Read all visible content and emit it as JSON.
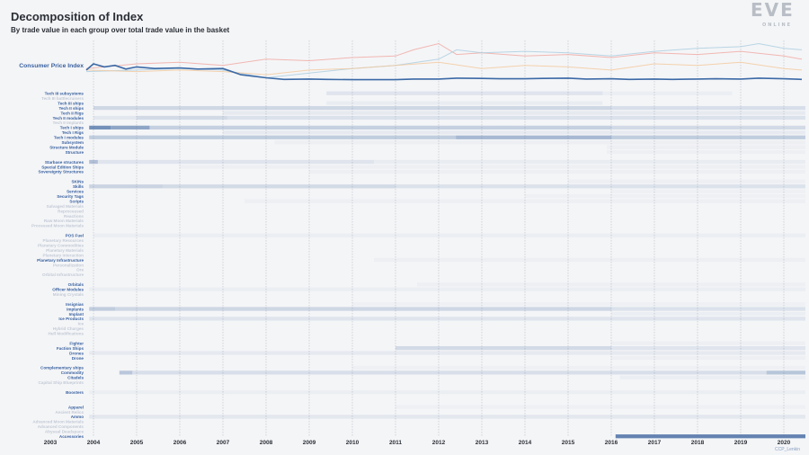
{
  "title": "Decomposition of Index",
  "subtitle": "By trade value in each group over total trade value in the basket",
  "logo": {
    "brand": "EVE",
    "sub": "ONLINE"
  },
  "credit": "CCP_Lenkin",
  "colors": {
    "cpi_line": "#3b69a6",
    "label_strong": "#3a62a0",
    "label_faint": "#c3cad6",
    "heat": "#4a6fa5",
    "background": "#f4f5f7",
    "gridline": "#b7bcc4",
    "bg_line_red": "#f0a8a0",
    "bg_line_blue": "#a9cde0",
    "bg_line_orange": "#f3c89a"
  },
  "chart_data": {
    "type": "heatmap",
    "title": "Decomposition of Index",
    "subtitle": "By trade value in each group over total trade value in the basket",
    "x_axis": {
      "type": "date",
      "range": [
        "2003-01-01",
        "2020-06-01"
      ],
      "ticks": [
        "2003",
        "2004",
        "2005",
        "2006",
        "2007",
        "2008",
        "2009",
        "2010",
        "2011",
        "2012",
        "2013",
        "2014",
        "2015",
        "2016",
        "2017",
        "2018",
        "2019",
        "2020"
      ],
      "grid": true
    },
    "top_series": {
      "name": "Consumer Price Index",
      "x": [
        "2003-11",
        "2004-01",
        "2004-04",
        "2004-07",
        "2004-10",
        "2005-01",
        "2005-06",
        "2006-01",
        "2006-06",
        "2007-01",
        "2007-06",
        "2008-01",
        "2008-06",
        "2009-01",
        "2009-06",
        "2010-01",
        "2010-06",
        "2011-01",
        "2011-06",
        "2012-01",
        "2012-06",
        "2013-01",
        "2013-06",
        "2014-01",
        "2014-06",
        "2015-01",
        "2015-06",
        "2016-01",
        "2016-06",
        "2017-01",
        "2017-06",
        "2018-01",
        "2018-06",
        "2019-01",
        "2019-06",
        "2020-01",
        "2020-06"
      ],
      "values": [
        0.85,
        1.05,
        0.95,
        1.0,
        0.88,
        0.95,
        0.9,
        0.92,
        0.88,
        0.9,
        0.7,
        0.6,
        0.55,
        0.56,
        0.55,
        0.54,
        0.54,
        0.54,
        0.56,
        0.56,
        0.59,
        0.58,
        0.57,
        0.57,
        0.58,
        0.59,
        0.56,
        0.57,
        0.55,
        0.56,
        0.55,
        0.56,
        0.57,
        0.56,
        0.59,
        0.57,
        0.55
      ]
    },
    "background_series": [
      {
        "color": "red",
        "x": [
          "2003-11",
          "2005-01",
          "2006-01",
          "2007-01",
          "2008-01",
          "2009-01",
          "2010-01",
          "2011-01",
          "2011-06",
          "2012-01",
          "2012-06",
          "2013-01",
          "2014-01",
          "2015-01",
          "2016-01",
          "2017-01",
          "2018-01",
          "2019-01",
          "2020-01",
          "2020-06"
        ],
        "values": [
          0.9,
          1.05,
          1.1,
          1.0,
          1.2,
          1.15,
          1.25,
          1.3,
          1.5,
          1.7,
          1.35,
          1.4,
          1.3,
          1.35,
          1.25,
          1.4,
          1.35,
          1.45,
          1.3,
          1.2
        ]
      },
      {
        "color": "blue",
        "x": [
          "2003-11",
          "2005-01",
          "2006-01",
          "2007-01",
          "2008-01",
          "2009-01",
          "2010-01",
          "2011-01",
          "2012-01",
          "2012-06",
          "2013-01",
          "2014-01",
          "2015-01",
          "2016-01",
          "2017-01",
          "2018-01",
          "2019-01",
          "2019-06",
          "2020-01",
          "2020-06"
        ],
        "values": [
          0.8,
          0.85,
          0.9,
          0.85,
          0.6,
          0.75,
          0.9,
          1.0,
          1.2,
          1.5,
          1.4,
          1.45,
          1.4,
          1.3,
          1.45,
          1.55,
          1.6,
          1.7,
          1.55,
          1.5
        ]
      },
      {
        "color": "orange",
        "x": [
          "2003-11",
          "2005-01",
          "2006-01",
          "2007-01",
          "2008-01",
          "2009-01",
          "2010-01",
          "2011-01",
          "2012-01",
          "2013-01",
          "2014-01",
          "2015-01",
          "2016-01",
          "2017-01",
          "2018-01",
          "2019-01",
          "2020-01",
          "2020-06"
        ],
        "values": [
          0.85,
          0.8,
          0.85,
          0.8,
          0.7,
          0.85,
          0.9,
          1.0,
          1.1,
          0.9,
          1.0,
          0.95,
          0.85,
          1.05,
          1.0,
          1.1,
          0.9,
          0.85
        ]
      }
    ],
    "categories": [
      {
        "name": "Tech III subsystems",
        "strong": true,
        "bands": [
          [
            2009.4,
            2015.8,
            0.12
          ],
          [
            2015.8,
            2018.8,
            0.05
          ]
        ]
      },
      {
        "name": "Tech III battlecruisers",
        "strong": false,
        "bands": []
      },
      {
        "name": "Tech III ships",
        "strong": true,
        "bands": [
          [
            2009.4,
            2015.8,
            0.06
          ]
        ]
      },
      {
        "name": "Tech II ships",
        "strong": true,
        "bands": [
          [
            2004.0,
            2016.0,
            0.22
          ],
          [
            2016.0,
            2020.5,
            0.16
          ]
        ]
      },
      {
        "name": "Tech II Rigs",
        "strong": true,
        "bands": [
          [
            2007.0,
            2020.5,
            0.08
          ]
        ]
      },
      {
        "name": "Tech II modules",
        "strong": true,
        "bands": [
          [
            2004.0,
            2005.0,
            0.1
          ],
          [
            2005.0,
            2007.1,
            0.2
          ],
          [
            2007.1,
            2020.5,
            0.14
          ]
        ]
      },
      {
        "name": "Tech II Implants",
        "strong": false,
        "bands": []
      },
      {
        "name": "Tech I ships",
        "strong": true,
        "bands": [
          [
            2003.9,
            2004.4,
            0.75
          ],
          [
            2004.4,
            2005.3,
            0.6
          ],
          [
            2005.3,
            2016.0,
            0.28
          ],
          [
            2016.0,
            2020.5,
            0.2
          ]
        ]
      },
      {
        "name": "Tech I Rigs",
        "strong": true,
        "bands": [
          [
            2007.0,
            2020.5,
            0.07
          ]
        ]
      },
      {
        "name": "Tech I modules",
        "strong": true,
        "bands": [
          [
            2003.9,
            2012.4,
            0.3
          ],
          [
            2012.4,
            2016.0,
            0.45
          ],
          [
            2016.0,
            2020.5,
            0.3
          ]
        ]
      },
      {
        "name": "Subsystem",
        "strong": true,
        "bands": [
          [
            2008.2,
            2020.5,
            0.04
          ]
        ]
      },
      {
        "name": "Structure Module",
        "strong": true,
        "bands": [
          [
            2015.9,
            2020.5,
            0.04
          ]
        ]
      },
      {
        "name": "Structure",
        "strong": true,
        "bands": [
          [
            2015.9,
            2020.5,
            0.04
          ]
        ]
      },
      {
        "name": "_gap1",
        "strong": false,
        "bands": [],
        "gap": true
      },
      {
        "name": "Starbase structures",
        "strong": true,
        "bands": [
          [
            2003.9,
            2004.1,
            0.4
          ],
          [
            2004.1,
            2010.5,
            0.12
          ],
          [
            2010.5,
            2020.5,
            0.06
          ]
        ]
      },
      {
        "name": "Special Edition Ships",
        "strong": true,
        "bands": [
          [
            2006.0,
            2020.5,
            0.04
          ]
        ]
      },
      {
        "name": "Sovereignty Structures",
        "strong": true,
        "bands": [
          [
            2009.0,
            2020.5,
            0.04
          ]
        ]
      },
      {
        "name": "_gap2",
        "strong": false,
        "bands": [],
        "gap": true
      },
      {
        "name": "SKINs",
        "strong": true,
        "bands": [
          [
            2015.0,
            2020.5,
            0.04
          ]
        ]
      },
      {
        "name": "Skills",
        "strong": true,
        "bands": [
          [
            2003.9,
            2005.6,
            0.25
          ],
          [
            2005.6,
            2011.0,
            0.2
          ],
          [
            2011.0,
            2020.5,
            0.14
          ]
        ]
      },
      {
        "name": "Services",
        "strong": true,
        "bands": [
          [
            2016.0,
            2020.5,
            0.03
          ]
        ]
      },
      {
        "name": "Security Tags",
        "strong": true,
        "bands": [
          [
            2014.0,
            2020.5,
            0.03
          ]
        ]
      },
      {
        "name": "Scripts",
        "strong": true,
        "bands": [
          [
            2007.5,
            2020.5,
            0.04
          ]
        ]
      },
      {
        "name": "Salvaged Materials",
        "strong": false,
        "bands": []
      },
      {
        "name": "Reprocessed",
        "strong": false,
        "bands": []
      },
      {
        "name": "Reactions",
        "strong": false,
        "bands": []
      },
      {
        "name": "Raw Moon Materials",
        "strong": false,
        "bands": []
      },
      {
        "name": "Processed Moon Materials",
        "strong": false,
        "bands": []
      },
      {
        "name": "_gap3",
        "strong": false,
        "bands": [],
        "gap": true
      },
      {
        "name": "POS Fuel",
        "strong": true,
        "bands": [
          [
            2004.0,
            2020.5,
            0.05
          ]
        ]
      },
      {
        "name": "Planetary Resources",
        "strong": false,
        "bands": []
      },
      {
        "name": "Planetary Commodities",
        "strong": false,
        "bands": []
      },
      {
        "name": "Planetary Materials",
        "strong": false,
        "bands": []
      },
      {
        "name": "Planetary Interaction",
        "strong": false,
        "bands": []
      },
      {
        "name": "Planetary Infrastructure",
        "strong": true,
        "bands": [
          [
            2010.5,
            2020.5,
            0.04
          ]
        ]
      },
      {
        "name": "Personalization",
        "strong": false,
        "bands": []
      },
      {
        "name": "Ore",
        "strong": false,
        "bands": []
      },
      {
        "name": "Orbital Infrastructure",
        "strong": false,
        "bands": []
      },
      {
        "name": "_gap4",
        "strong": false,
        "bands": [],
        "gap": true
      },
      {
        "name": "Orbitals",
        "strong": true,
        "bands": [
          [
            2011.5,
            2020.5,
            0.04
          ]
        ]
      },
      {
        "name": "Officer Modules",
        "strong": true,
        "bands": [
          [
            2003.9,
            2020.5,
            0.05
          ]
        ]
      },
      {
        "name": "Mining Crystals",
        "strong": false,
        "bands": []
      },
      {
        "name": "_gap5",
        "strong": false,
        "bands": [],
        "gap": true
      },
      {
        "name": "Insignias",
        "strong": true,
        "bands": [
          [
            2010.0,
            2020.5,
            0.03
          ]
        ]
      },
      {
        "name": "Implants",
        "strong": true,
        "bands": [
          [
            2003.9,
            2004.5,
            0.3
          ],
          [
            2004.5,
            2016.0,
            0.22
          ],
          [
            2016.0,
            2020.5,
            0.14
          ]
        ]
      },
      {
        "name": "Implant",
        "strong": true,
        "bands": [
          [
            2016.0,
            2020.5,
            0.05
          ]
        ]
      },
      {
        "name": "Ice Products",
        "strong": true,
        "bands": [
          [
            2003.9,
            2020.5,
            0.12
          ]
        ]
      },
      {
        "name": "Ice",
        "strong": false,
        "bands": []
      },
      {
        "name": "Hybrid Charges",
        "strong": false,
        "bands": []
      },
      {
        "name": "Hull Modifications",
        "strong": false,
        "bands": []
      },
      {
        "name": "_gap6",
        "strong": false,
        "bands": [],
        "gap": true
      },
      {
        "name": "Fighter",
        "strong": true,
        "bands": [
          [
            2016.0,
            2020.5,
            0.04
          ]
        ]
      },
      {
        "name": "Faction Ships",
        "strong": true,
        "bands": [
          [
            2011.0,
            2016.0,
            0.2
          ],
          [
            2016.0,
            2020.5,
            0.12
          ]
        ]
      },
      {
        "name": "Drones",
        "strong": true,
        "bands": [
          [
            2003.9,
            2020.5,
            0.08
          ]
        ]
      },
      {
        "name": "Drone",
        "strong": true,
        "bands": [
          [
            2016.0,
            2020.5,
            0.04
          ]
        ]
      },
      {
        "name": "_gap7",
        "strong": false,
        "bands": [],
        "gap": true
      },
      {
        "name": "Complementary ships",
        "strong": true,
        "bands": [
          [
            2010.0,
            2020.5,
            0.03
          ]
        ]
      },
      {
        "name": "Commodity",
        "strong": true,
        "bands": [
          [
            2004.6,
            2004.9,
            0.35
          ],
          [
            2004.9,
            2020.5,
            0.16
          ],
          [
            2019.6,
            2020.5,
            0.22
          ]
        ]
      },
      {
        "name": "Citadels",
        "strong": true,
        "bands": [
          [
            2016.2,
            2020.5,
            0.05
          ]
        ]
      },
      {
        "name": "Capital Ship Blueprints",
        "strong": false,
        "bands": []
      },
      {
        "name": "_gap8",
        "strong": false,
        "bands": [],
        "gap": true
      },
      {
        "name": "Boosters",
        "strong": true,
        "bands": [
          [
            2003.9,
            2020.5,
            0.05
          ]
        ]
      },
      {
        "name": "_gap9",
        "strong": false,
        "bands": [],
        "gap": true
      },
      {
        "name": "_gap10",
        "strong": false,
        "bands": [],
        "gap": true
      },
      {
        "name": "Apparel",
        "strong": true,
        "bands": [
          [
            2011.0,
            2020.5,
            0.03
          ]
        ]
      },
      {
        "name": "Ancient Relics",
        "strong": false,
        "bands": []
      },
      {
        "name": "Ammo",
        "strong": true,
        "bands": [
          [
            2003.9,
            2020.5,
            0.1
          ]
        ]
      },
      {
        "name": "Advanced Moon Materials",
        "strong": false,
        "bands": []
      },
      {
        "name": "Advanced Components",
        "strong": false,
        "bands": []
      },
      {
        "name": "Abyssal Deadspace",
        "strong": false,
        "bands": []
      },
      {
        "name": "Accessories",
        "strong": true,
        "bands": [
          [
            2016.1,
            2020.5,
            0.85
          ]
        ]
      }
    ]
  }
}
